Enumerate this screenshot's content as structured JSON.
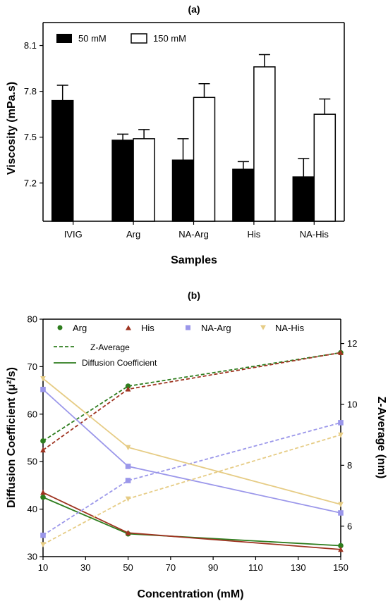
{
  "chart_data": [
    {
      "panel_label": "(a)",
      "type": "bar",
      "xlabel": "Samples",
      "ylabel": "Viscosity (mPa.s)",
      "ylim": [
        6.95,
        8.25
      ],
      "yticks": [
        7.2,
        7.5,
        7.8,
        8.1
      ],
      "ytick_labels": [
        "7.2",
        "7.5",
        "7.8",
        "8.1"
      ],
      "categories": [
        "IVIG",
        "Arg",
        "NA-Arg",
        "His",
        "NA-His"
      ],
      "legend_position": "top-left",
      "series": [
        {
          "name": "50 mM",
          "fill": "#000000",
          "values": [
            7.74,
            7.48,
            7.35,
            7.29,
            7.24
          ],
          "errors": [
            0.1,
            0.04,
            0.14,
            0.05,
            0.12
          ]
        },
        {
          "name": "150 mM",
          "fill": "#ffffff",
          "values": [
            null,
            7.49,
            7.76,
            7.96,
            7.65
          ],
          "errors": [
            null,
            0.06,
            0.09,
            0.08,
            0.1
          ]
        }
      ]
    },
    {
      "panel_label": "(b)",
      "type": "line",
      "xlabel": "Concentration (mM)",
      "ylabel": "Diffusion Coefficient (μ²/s)",
      "y2label": "Z-Average (nm)",
      "x": [
        10,
        50,
        150
      ],
      "xlim": [
        10,
        150
      ],
      "xticks": [
        10,
        30,
        50,
        70,
        90,
        110,
        130,
        150
      ],
      "xtick_labels": [
        "10",
        "30",
        "50",
        "70",
        "90",
        "110",
        "130",
        "150"
      ],
      "ylim": [
        30,
        80
      ],
      "yticks": [
        30,
        40,
        50,
        60,
        70,
        80
      ],
      "ytick_labels": [
        "30",
        "40",
        "50",
        "60",
        "70",
        "80"
      ],
      "y2lim": [
        5,
        12.8
      ],
      "y2ticks": [
        6,
        8,
        10,
        12
      ],
      "y2tick_labels": [
        "6",
        "8",
        "10",
        "12"
      ],
      "line_styles": {
        "dashed": "Z-Average",
        "solid": "Diffusion Coefficient"
      },
      "series": [
        {
          "name": "Arg",
          "color": "#2e7d1e",
          "marker": "circle",
          "diffusion": [
            42.5,
            34.8,
            32.3
          ],
          "z_average": [
            8.8,
            10.6,
            11.7
          ]
        },
        {
          "name": "His",
          "color": "#9e3320",
          "marker": "triangle-up",
          "diffusion": [
            43.5,
            35.0,
            31.5
          ],
          "z_average": [
            8.5,
            10.5,
            11.7
          ]
        },
        {
          "name": "NA-Arg",
          "color": "#9b97ea",
          "marker": "square",
          "diffusion": [
            65.2,
            49.0,
            39.2
          ],
          "z_average": [
            5.7,
            7.5,
            9.4
          ]
        },
        {
          "name": "NA-His",
          "color": "#e6cc85",
          "marker": "triangle-down",
          "diffusion": [
            67.5,
            53.0,
            41.0
          ],
          "z_average": [
            5.4,
            6.9,
            9.0
          ]
        }
      ]
    }
  ]
}
